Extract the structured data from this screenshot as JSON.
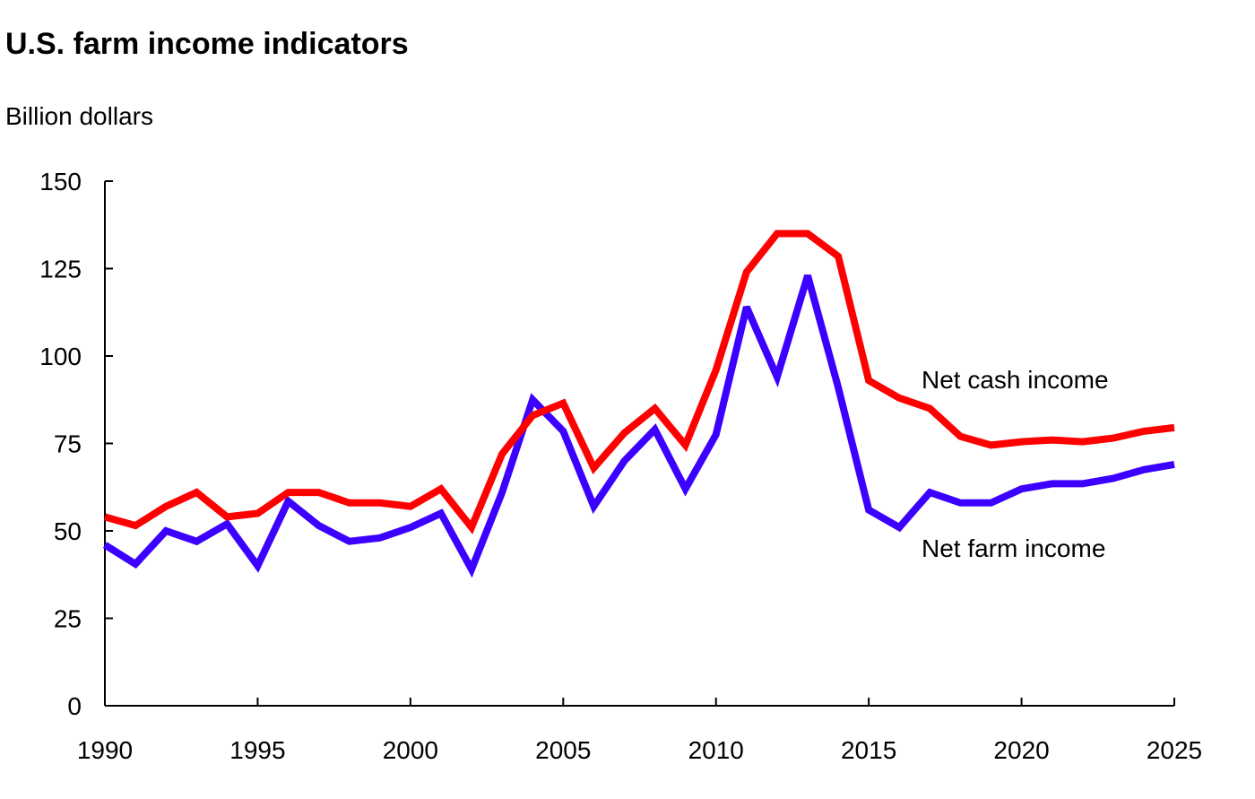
{
  "chart_data": {
    "type": "line",
    "title": "U.S. farm income indicators",
    "ylabel": "Billion dollars",
    "xlabel": "",
    "xlim": [
      1990,
      2025
    ],
    "ylim": [
      0,
      150
    ],
    "x_ticks": [
      1990,
      1995,
      2000,
      2005,
      2010,
      2015,
      2020,
      2025
    ],
    "y_ticks": [
      0,
      25,
      50,
      75,
      100,
      125,
      150
    ],
    "grid": false,
    "legend": "inline labels next to series",
    "x": [
      1990,
      1991,
      1992,
      1993,
      1994,
      1995,
      1996,
      1997,
      1998,
      1999,
      2000,
      2001,
      2002,
      2003,
      2004,
      2005,
      2006,
      2007,
      2008,
      2009,
      2010,
      2011,
      2012,
      2013,
      2014,
      2015,
      2016,
      2017,
      2018,
      2019,
      2020,
      2021,
      2022,
      2023,
      2024,
      2025
    ],
    "series": [
      {
        "name": "Net cash income",
        "color": "#ff0000",
        "values": [
          54,
          51.5,
          57,
          61,
          54,
          55,
          61,
          61,
          58,
          58,
          57,
          62,
          51,
          72,
          83,
          86.5,
          68,
          78,
          85,
          74.5,
          96,
          124,
          135,
          135,
          128.5,
          93,
          88,
          85,
          77,
          74.5,
          75.5,
          76,
          75.5,
          76.5,
          78.5,
          79.5
        ]
      },
      {
        "name": "Net farm income",
        "color": "#3b00ff",
        "values": [
          46,
          40.5,
          50,
          47,
          52,
          40,
          58.5,
          51.5,
          47,
          48,
          51,
          55,
          39,
          61,
          87.5,
          78.5,
          57,
          70,
          79,
          62,
          77.5,
          114,
          94,
          123,
          91,
          56,
          51,
          61,
          58,
          58,
          62,
          63.5,
          63.5,
          65,
          67.5,
          69
        ]
      }
    ]
  }
}
